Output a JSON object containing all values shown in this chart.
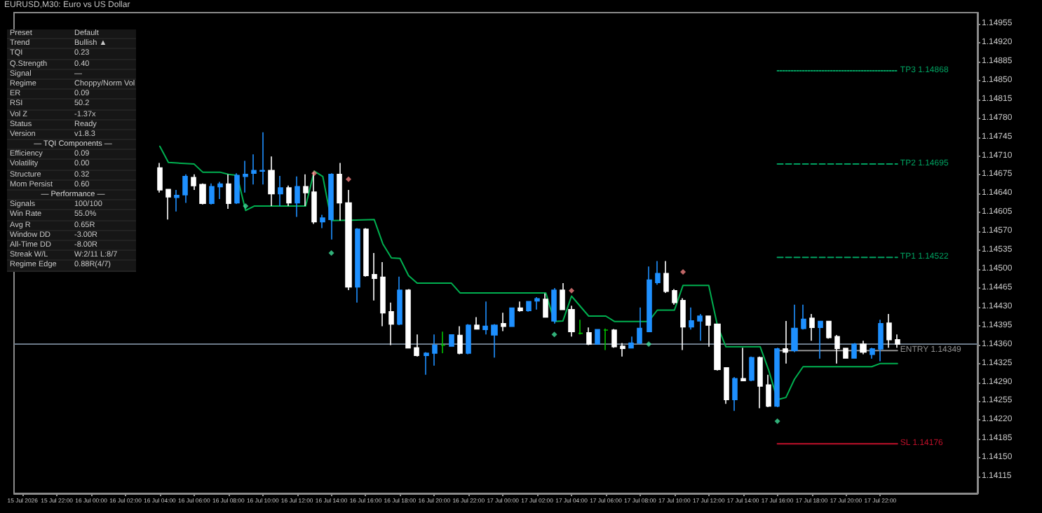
{
  "chart_data": [
    {
      "type": "candlestick",
      "title": "EURUSD,M30: Euro vs US Dollar",
      "x": [
        "2026-07-16T04:00",
        "2026-07-16T04:30",
        "2026-07-16T05:00",
        "2026-07-16T05:30",
        "2026-07-16T06:00",
        "2026-07-16T06:30",
        "2026-07-16T07:00",
        "2026-07-16T07:30",
        "2026-07-16T08:00",
        "2026-07-16T08:30",
        "2026-07-16T09:00",
        "2026-07-16T09:30",
        "2026-07-16T10:00",
        "2026-07-16T10:30",
        "2026-07-16T11:00",
        "2026-07-16T11:30",
        "2026-07-16T12:00",
        "2026-07-16T12:30",
        "2026-07-16T13:00",
        "2026-07-16T13:30",
        "2026-07-16T14:00",
        "2026-07-16T14:30",
        "2026-07-16T15:00",
        "2026-07-16T15:30",
        "2026-07-16T16:00",
        "2026-07-16T16:30",
        "2026-07-16T17:00",
        "2026-07-16T17:30",
        "2026-07-16T18:00",
        "2026-07-16T18:30",
        "2026-07-16T19:00",
        "2026-07-16T19:30",
        "2026-07-16T20:00",
        "2026-07-16T20:30",
        "2026-07-16T21:00",
        "2026-07-16T21:30",
        "2026-07-16T22:00",
        "2026-07-16T22:30",
        "2026-07-16T23:00",
        "2026-07-16T23:30",
        "2026-07-17T00:00",
        "2026-07-17T00:30",
        "2026-07-17T01:00",
        "2026-07-17T01:30",
        "2026-07-17T02:00",
        "2026-07-17T02:30",
        "2026-07-17T03:00",
        "2026-07-17T03:30",
        "2026-07-17T04:00",
        "2026-07-17T04:30",
        "2026-07-17T05:00",
        "2026-07-17T05:30",
        "2026-07-17T06:00",
        "2026-07-17T06:30",
        "2026-07-17T07:00",
        "2026-07-17T07:30",
        "2026-07-17T08:00",
        "2026-07-17T08:30",
        "2026-07-17T09:00",
        "2026-07-17T09:30",
        "2026-07-17T10:00",
        "2026-07-17T10:30",
        "2026-07-17T11:00",
        "2026-07-17T11:30",
        "2026-07-17T12:00",
        "2026-07-17T12:30",
        "2026-07-17T13:00",
        "2026-07-17T13:30",
        "2026-07-17T14:00",
        "2026-07-17T14:30",
        "2026-07-17T15:00",
        "2026-07-17T15:30",
        "2026-07-17T16:00",
        "2026-07-17T16:30",
        "2026-07-17T17:00",
        "2026-07-17T17:30",
        "2026-07-17T18:00",
        "2026-07-17T18:30",
        "2026-07-17T19:00",
        "2026-07-17T19:30",
        "2026-07-17T20:00",
        "2026-07-17T20:30",
        "2026-07-17T21:00",
        "2026-07-17T21:30",
        "2026-07-17T22:00",
        "2026-07-17T22:30",
        "2026-07-17T23:00"
      ],
      "ohlc": [
        [
          1.14688,
          1.14697,
          1.14642,
          1.14647
        ],
        [
          1.14648,
          1.14648,
          1.14592,
          1.14634
        ],
        [
          1.14633,
          1.14647,
          1.14607,
          1.14637
        ],
        [
          1.14638,
          1.14676,
          1.14623,
          1.14672
        ],
        [
          1.1467,
          1.14676,
          1.14647,
          1.14655
        ],
        [
          1.14657,
          1.14659,
          1.1462,
          1.14622
        ],
        [
          1.14622,
          1.14659,
          1.1462,
          1.14653
        ],
        [
          1.14653,
          1.14662,
          1.1463,
          1.14658
        ],
        [
          1.14658,
          1.14676,
          1.14612,
          1.14622
        ],
        [
          1.14623,
          1.14678,
          1.14621,
          1.14674
        ],
        [
          1.14672,
          1.14701,
          1.14642,
          1.14676
        ],
        [
          1.14678,
          1.14713,
          1.14657,
          1.14683
        ],
        [
          1.14682,
          1.14754,
          1.14657,
          1.14683
        ],
        [
          1.14683,
          1.14709,
          1.14617,
          1.1464
        ],
        [
          1.1464,
          1.14673,
          1.14617,
          1.14651
        ],
        [
          1.14651,
          1.14655,
          1.14617,
          1.14623
        ],
        [
          1.14623,
          1.14672,
          1.14597,
          1.14653
        ],
        [
          1.14653,
          1.14676,
          1.14617,
          1.14642
        ],
        [
          1.14643,
          1.1468,
          1.14584,
          1.14588
        ],
        [
          1.14588,
          1.14601,
          1.14576,
          1.14595
        ],
        [
          1.14592,
          1.14678,
          1.14555,
          1.14676
        ],
        [
          1.14676,
          1.14697,
          1.1459,
          1.14623
        ],
        [
          1.14623,
          1.14647,
          1.14461,
          1.14467
        ],
        [
          1.14467,
          1.14576,
          1.14438,
          1.14574
        ],
        [
          1.14574,
          1.14576,
          1.14486,
          1.14488
        ],
        [
          1.1449,
          1.1453,
          1.14442,
          1.14483
        ],
        [
          1.14485,
          1.14513,
          1.14394,
          1.14419
        ],
        [
          1.14421,
          1.14438,
          1.14359,
          1.14398
        ],
        [
          1.14398,
          1.14486,
          1.14396,
          1.14461
        ],
        [
          1.14461,
          1.14463,
          1.14353,
          1.14354
        ],
        [
          1.14354,
          1.14379,
          1.14338,
          1.1434
        ],
        [
          1.1434,
          1.14346,
          1.14304,
          1.14344
        ],
        [
          1.14344,
          1.14379,
          1.14321,
          1.14359
        ],
        [
          1.14359,
          1.14384,
          1.14344,
          1.14359
        ],
        [
          1.14357,
          1.14379,
          1.14356,
          1.14378
        ],
        [
          1.14377,
          1.14394,
          1.14342,
          1.14344
        ],
        [
          1.14344,
          1.14398,
          1.14342,
          1.14396
        ],
        [
          1.14396,
          1.14411,
          1.14388,
          1.14389
        ],
        [
          1.14388,
          1.1444,
          1.14379,
          1.14394
        ],
        [
          1.14378,
          1.14398,
          1.14336,
          1.14396
        ],
        [
          1.14399,
          1.14419,
          1.14385,
          1.14394
        ],
        [
          1.14394,
          1.14429,
          1.14393,
          1.14428
        ],
        [
          1.14428,
          1.1444,
          1.14421,
          1.14423
        ],
        [
          1.14423,
          1.14441,
          1.14421,
          1.1444
        ],
        [
          1.14441,
          1.14448,
          1.14425,
          1.14445
        ],
        [
          1.14444,
          1.14455,
          1.14411,
          1.14411
        ],
        [
          1.14404,
          1.14465,
          1.14399,
          1.14461
        ],
        [
          1.14461,
          1.14474,
          1.14425,
          1.14425
        ],
        [
          1.14425,
          1.14432,
          1.14375,
          1.14384
        ],
        [
          1.14381,
          1.14406,
          1.14379,
          1.14381
        ],
        [
          1.14382,
          1.14392,
          1.14359,
          1.14361
        ],
        [
          1.14361,
          1.14389,
          1.1436,
          1.14388
        ],
        [
          1.14387,
          1.1439,
          1.1435,
          1.14387
        ],
        [
          1.14387,
          1.14389,
          1.14354,
          1.14356
        ],
        [
          1.14357,
          1.14363,
          1.14338,
          1.14353
        ],
        [
          1.14354,
          1.14375,
          1.14353,
          1.14363
        ],
        [
          1.14363,
          1.14429,
          1.14361,
          1.1439
        ],
        [
          1.14384,
          1.14505,
          1.14384,
          1.1448
        ],
        [
          1.14475,
          1.14515,
          1.14471,
          1.14492
        ],
        [
          1.14492,
          1.14515,
          1.14456,
          1.14459
        ],
        [
          1.1446,
          1.14463,
          1.14434,
          1.14438
        ],
        [
          1.14442,
          1.14446,
          1.1435,
          1.14393
        ],
        [
          1.14393,
          1.14429,
          1.14388,
          1.14404
        ],
        [
          1.14404,
          1.14417,
          1.14367,
          1.14413
        ],
        [
          1.14413,
          1.14414,
          1.14356,
          1.14396
        ],
        [
          1.14398,
          1.14398,
          1.14312,
          1.14314
        ],
        [
          1.14317,
          1.14317,
          1.1425,
          1.14258
        ],
        [
          1.14258,
          1.143,
          1.14237,
          1.14297
        ],
        [
          1.14297,
          1.14354,
          1.14292,
          1.14293
        ],
        [
          1.14294,
          1.14338,
          1.14292,
          1.14336
        ],
        [
          1.14336,
          1.14338,
          1.14242,
          1.14283
        ],
        [
          1.14285,
          1.14304,
          1.14244,
          1.14246
        ],
        [
          1.14246,
          1.14354,
          1.14244,
          1.14352
        ],
        [
          1.14352,
          1.14404,
          1.14325,
          1.14346
        ],
        [
          1.14349,
          1.14434,
          1.14346,
          1.1439
        ],
        [
          1.1439,
          1.14434,
          1.14388,
          1.14407
        ],
        [
          1.14409,
          1.14417,
          1.14367,
          1.14392
        ],
        [
          1.14392,
          1.14404,
          1.14334,
          1.14403
        ],
        [
          1.14403,
          1.14404,
          1.14371,
          1.14373
        ],
        [
          1.14375,
          1.14378,
          1.14325,
          1.14353
        ],
        [
          1.14353,
          1.14354,
          1.14334,
          1.14335
        ],
        [
          1.14335,
          1.14363,
          1.14334,
          1.14361
        ],
        [
          1.14361,
          1.14367,
          1.14342,
          1.14346
        ],
        [
          1.14342,
          1.14354,
          1.14334,
          1.14352
        ],
        [
          1.14352,
          1.14406,
          1.14329,
          1.14399
        ],
        [
          1.144,
          1.14417,
          1.14354,
          1.14369
        ],
        [
          1.14369,
          1.14379,
          1.14354,
          1.14361
        ]
      ],
      "colors": [
        "#ffffff",
        "#ffffff",
        "#1e90ff",
        "#1e90ff",
        "#ffffff",
        "#ffffff",
        "#1e90ff",
        "#1e90ff",
        "#ffffff",
        "#1e90ff",
        "#1e90ff",
        "#1e90ff",
        "#1e90ff",
        "#ffffff",
        "#1e90ff",
        "#ffffff",
        "#1e90ff",
        "#ffffff",
        "#ffffff",
        "#1e90ff",
        "#1e90ff",
        "#ffffff",
        "#ffffff",
        "#1e90ff",
        "#ffffff",
        "#ffffff",
        "#ffffff",
        "#ffffff",
        "#1e90ff",
        "#ffffff",
        "#ffffff",
        "#1e90ff",
        "#1e90ff",
        "#00c000",
        "#1e90ff",
        "#ffffff",
        "#1e90ff",
        "#ffffff",
        "#1e90ff",
        "#1e90ff",
        "#ffffff",
        "#1e90ff",
        "#ffffff",
        "#1e90ff",
        "#1e90ff",
        "#ffffff",
        "#1e90ff",
        "#ffffff",
        "#ffffff",
        "#00c000",
        "#ffffff",
        "#1e90ff",
        "#00c000",
        "#ffffff",
        "#ffffff",
        "#1e90ff",
        "#1e90ff",
        "#1e90ff",
        "#1e90ff",
        "#ffffff",
        "#ffffff",
        "#ffffff",
        "#1e90ff",
        "#1e90ff",
        "#ffffff",
        "#ffffff",
        "#ffffff",
        "#1e90ff",
        "#ffffff",
        "#1e90ff",
        "#ffffff",
        "#ffffff",
        "#1e90ff",
        "#ffffff",
        "#1e90ff",
        "#1e90ff",
        "#ffffff",
        "#1e90ff",
        "#ffffff",
        "#ffffff",
        "#ffffff",
        "#1e90ff",
        "#ffffff",
        "#1e90ff",
        "#1e90ff",
        "#ffffff",
        "#ffffff"
      ],
      "series": [
        {
          "type": "line",
          "color": "#00b050",
          "x": [
            "2026-07-16T04:00",
            "2026-07-16T04:30",
            "2026-07-16T06:00",
            "2026-07-16T06:30",
            "2026-07-16T07:30",
            "2026-07-16T08:00",
            "2026-07-16T08:30",
            "2026-07-16T09:00",
            "2026-07-16T09:30",
            "2026-07-16T12:30",
            "2026-07-16T13:00",
            "2026-07-16T13:30",
            "2026-07-16T14:00",
            "2026-07-16T16:30",
            "2026-07-16T17:00",
            "2026-07-16T17:30",
            "2026-07-16T18:00",
            "2026-07-16T18:30",
            "2026-07-16T19:00",
            "2026-07-16T21:00",
            "2026-07-16T21:30",
            "2026-07-17T02:30",
            "2026-07-17T03:00",
            "2026-07-17T03:30",
            "2026-07-17T04:00",
            "2026-07-17T05:00",
            "2026-07-17T06:00",
            "2026-07-17T06:30",
            "2026-07-17T08:30",
            "2026-07-17T09:00",
            "2026-07-17T10:00",
            "2026-07-17T10:30",
            "2026-07-17T12:00",
            "2026-07-17T12:30",
            "2026-07-17T13:00",
            "2026-07-17T15:00",
            "2026-07-17T15:30",
            "2026-07-17T16:00",
            "2026-07-17T16:30",
            "2026-07-17T17:00",
            "2026-07-17T17:30",
            "2026-07-17T21:30",
            "2026-07-17T22:00",
            "2026-07-17T23:00"
          ],
          "values": [
            1.14728,
            1.14698,
            1.14695,
            1.1468,
            1.1468,
            1.14676,
            1.14674,
            1.14609,
            1.14617,
            1.14617,
            1.14682,
            1.14672,
            1.1459,
            1.14592,
            1.14547,
            1.14521,
            1.1452,
            1.14488,
            1.14474,
            1.14474,
            1.14456,
            1.14456,
            1.14403,
            1.14404,
            1.1445,
            1.14413,
            1.14413,
            1.14403,
            1.14403,
            1.14424,
            1.14424,
            1.1447,
            1.1447,
            1.14396,
            1.14356,
            1.14356,
            1.14312,
            1.14258,
            1.14262,
            1.14296,
            1.14319,
            1.14319,
            1.14325,
            1.14325
          ]
        },
        {
          "type": "scatter",
          "color": "#3ddc97",
          "marker": "diamond",
          "x": [
            "2026-07-16T09:00",
            "2026-07-16T14:00",
            "2026-07-17T03:00",
            "2026-07-17T08:30",
            "2026-07-17T16:00"
          ],
          "values": [
            1.14617,
            1.1453,
            1.14379,
            1.14361,
            1.14218
          ]
        },
        {
          "type": "scatter",
          "color": "#f08080",
          "marker": "diamond",
          "x": [
            "2026-07-16T13:00",
            "2026-07-16T15:00",
            "2026-07-17T04:00",
            "2026-07-17T10:30"
          ],
          "values": [
            1.14678,
            1.14667,
            1.1446,
            1.14495
          ]
        },
        {
          "type": "line",
          "name": "TP3 1.14868",
          "color": "#00a060",
          "line_style": "dotted",
          "x": [
            "2026-07-17T16:00",
            "2026-07-17T23:00"
          ],
          "values": [
            1.14868,
            1.14868
          ]
        },
        {
          "type": "line",
          "name": "TP2 1.14695",
          "color": "#00a060",
          "line_style": "dashed",
          "x": [
            "2026-07-17T16:00",
            "2026-07-17T23:00"
          ],
          "values": [
            1.14695,
            1.14695
          ]
        },
        {
          "type": "line",
          "name": "TP1 1.14522",
          "color": "#00a060",
          "line_style": "dashed",
          "x": [
            "2026-07-17T16:00",
            "2026-07-17T23:00"
          ],
          "values": [
            1.14522,
            1.14522
          ]
        },
        {
          "type": "line",
          "name": "ENTRY 1.14349",
          "color": "#909090",
          "line_style": "solid",
          "x": [
            "2026-07-17T16:00",
            "2026-07-17T23:00"
          ],
          "values": [
            1.14349,
            1.14349
          ]
        },
        {
          "type": "line",
          "name": "SL 1.14176",
          "color": "#c0102a",
          "line_style": "solid",
          "x": [
            "2026-07-17T16:00",
            "2026-07-17T23:00"
          ],
          "values": [
            1.14176,
            1.14176
          ]
        }
      ],
      "ref_lines": [
        {
          "axis": "y",
          "value": 1.14361,
          "color": "#6c7a89"
        }
      ],
      "xlim": [
        "2026-07-15T19:30",
        "2026-07-18T03:40"
      ],
      "xticks": [
        {
          "value": "2026-07-15T20:00",
          "label": "15 Jul 2026"
        },
        {
          "value": "2026-07-15T22:00",
          "label": "15 Jul 22:00"
        },
        {
          "value": "2026-07-16T00:00",
          "label": "16 Jul 00:00"
        },
        {
          "value": "2026-07-16T02:00",
          "label": "16 Jul 02:00"
        },
        {
          "value": "2026-07-16T04:00",
          "label": "16 Jul 04:00"
        },
        {
          "value": "2026-07-16T06:00",
          "label": "16 Jul 06:00"
        },
        {
          "value": "2026-07-16T08:00",
          "label": "16 Jul 08:00"
        },
        {
          "value": "2026-07-16T10:00",
          "label": "16 Jul 10:00"
        },
        {
          "value": "2026-07-16T12:00",
          "label": "16 Jul 12:00"
        },
        {
          "value": "2026-07-16T14:00",
          "label": "16 Jul 14:00"
        },
        {
          "value": "2026-07-16T16:00",
          "label": "16 Jul 16:00"
        },
        {
          "value": "2026-07-16T18:00",
          "label": "16 Jul 18:00"
        },
        {
          "value": "2026-07-16T20:00",
          "label": "16 Jul 20:00"
        },
        {
          "value": "2026-07-16T22:00",
          "label": "16 Jul 22:00"
        },
        {
          "value": "2026-07-17T00:00",
          "label": "17 Jul 00:00"
        },
        {
          "value": "2026-07-17T02:00",
          "label": "17 Jul 02:00"
        },
        {
          "value": "2026-07-17T04:00",
          "label": "17 Jul 04:00"
        },
        {
          "value": "2026-07-17T06:00",
          "label": "17 Jul 06:00"
        },
        {
          "value": "2026-07-17T08:00",
          "label": "17 Jul 08:00"
        },
        {
          "value": "2026-07-17T10:00",
          "label": "17 Jul 10:00"
        },
        {
          "value": "2026-07-17T12:00",
          "label": "17 Jul 12:00"
        },
        {
          "value": "2026-07-17T14:00",
          "label": "17 Jul 14:00"
        },
        {
          "value": "2026-07-17T16:00",
          "label": "17 Jul 16:00"
        },
        {
          "value": "2026-07-17T18:00",
          "label": "17 Jul 18:00"
        },
        {
          "value": "2026-07-17T20:00",
          "label": "17 Jul 20:00"
        },
        {
          "value": "2026-07-17T22:00",
          "label": "17 Jul 22:00"
        }
      ],
      "ylim": [
        1.14084,
        1.14976
      ],
      "yticks": [
        1.14115,
        {
          "value": 1.1415,
          "label": "1.14150"
        },
        1.14185,
        {
          "value": 1.1422,
          "label": "1.14220"
        },
        1.14255,
        {
          "value": 1.1429,
          "label": "1.14290"
        },
        1.14325,
        {
          "value": 1.1436,
          "label": "1.14360"
        },
        1.14395,
        {
          "value": 1.1443,
          "label": "1.14430"
        },
        1.14465,
        {
          "value": 1.145,
          "label": "1.14500"
        },
        1.14535,
        {
          "value": 1.1457,
          "label": "1.14570"
        },
        1.14605,
        {
          "value": 1.1464,
          "label": "1.14640"
        },
        1.14675,
        {
          "value": 1.1471,
          "label": "1.14710"
        },
        1.14745,
        {
          "value": 1.1478,
          "label": "1.14780"
        },
        1.14815,
        {
          "value": 1.1485,
          "label": "1.14850"
        },
        1.14885,
        {
          "value": 1.1492,
          "label": "1.14920"
        },
        1.14955
      ]
    },
    {
      "type": "other",
      "annotations": [
        "Preset",
        "Default",
        "Trend",
        "Bullish ▲",
        "TQI",
        "0.23",
        "Q.Strength",
        "0.40",
        "Signal",
        "—",
        "Regime",
        "Choppy/Norm Vol",
        "ER",
        "0.09",
        "RSI",
        "50.2",
        "Vol Z",
        "-1.37x",
        "Status",
        "Ready",
        "Version",
        "v1.8.3"
      ]
    },
    {
      "type": "other",
      "title": "— TQI Components —",
      "annotations": [
        "Efficiency",
        "0.09",
        "Volatility",
        "0.00",
        "Structure",
        "0.32",
        "Mom Persist",
        "0.60"
      ]
    },
    {
      "type": "other",
      "title": "— Performance —",
      "annotations": [
        "Signals",
        "100/100",
        "Win Rate",
        "55.0%",
        "Avg R",
        "0.65R",
        "Window DD",
        "-3.00R",
        "All-Time DD",
        "-8.00R",
        "Streak W/L",
        "W:2/11 L:8/7",
        "Regime Edge",
        "0.88R(4/7)"
      ]
    }
  ]
}
